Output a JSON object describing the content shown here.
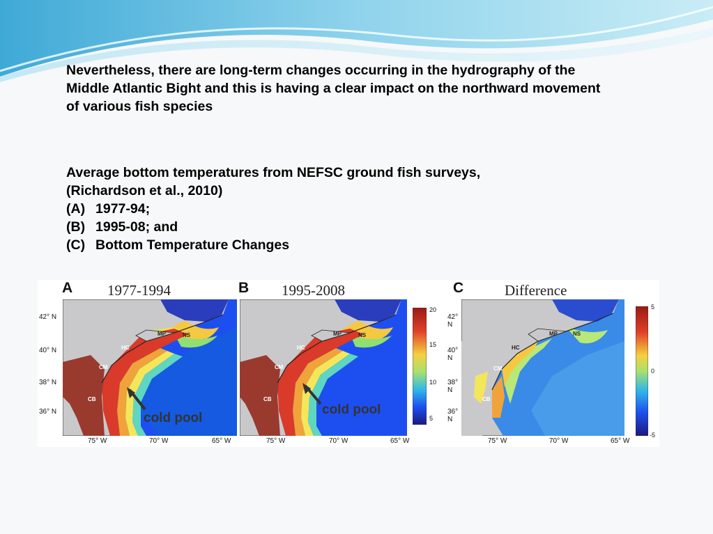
{
  "paragraph1": [
    "Nevertheless, there are long-term changes occurring in the hydrography of the",
    "Middle Atlantic Bight  and this is having a clear impact on the northward movement",
    "of various fish species"
  ],
  "paragraph2": {
    "line1": "Average bottom temperatures from NEFSC ground fish surveys,",
    "line2": "(Richardson et al., 2010)",
    "items": [
      {
        "label": "(A)",
        "text": "1977-94;"
      },
      {
        "label": "(B)",
        "text": "1995-08; and"
      },
      {
        "label": "(C)",
        "text": "Bottom Temperature Changes"
      }
    ]
  },
  "figure": {
    "panels": [
      {
        "letter": "A",
        "title": "1977-1994"
      },
      {
        "letter": "B",
        "title": "1995-2008"
      },
      {
        "letter": "C",
        "title": "Difference"
      }
    ],
    "lat_ticks": [
      "42° N",
      "40° N",
      "38° N",
      "36° N"
    ],
    "lon_ticks": [
      "75° W",
      "70° W",
      "65° W"
    ],
    "region_labels": {
      "hc": "HC",
      "mp": "MP",
      "ns": "NS",
      "cm": "CM",
      "cb": "CB"
    },
    "cold_pool_label": "cold pool",
    "colorbar_ab": [
      "20",
      "15",
      "10",
      "5"
    ],
    "colorbar_c": [
      "5",
      "0",
      "-5"
    ]
  },
  "colors": {
    "text": "#000000",
    "wave_dark": "#5bb5d8",
    "wave_light": "#a8dcee"
  }
}
